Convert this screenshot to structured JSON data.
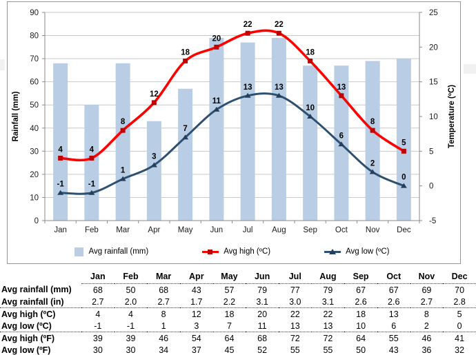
{
  "chart_data": {
    "type": "combo",
    "categories": [
      "Jan",
      "Feb",
      "Mar",
      "Apr",
      "May",
      "Jun",
      "Jul",
      "Aug",
      "Sep",
      "Oct",
      "Nov",
      "Dec"
    ],
    "series": [
      {
        "name": "Avg rainfall (mm)",
        "type": "bar",
        "axis": "left",
        "color": "#B9CDE4",
        "values": [
          68,
          50,
          68,
          43,
          57,
          79,
          77,
          79,
          67,
          67,
          69,
          70
        ]
      },
      {
        "name": "Avg high (ºC)",
        "type": "line",
        "axis": "right",
        "color": "#FF0000",
        "marker": "square",
        "marker_color": "#C00000",
        "values": [
          4,
          4,
          8,
          12,
          18,
          20,
          22,
          22,
          18,
          13,
          8,
          5
        ]
      },
      {
        "name": "Avg low (ºC)",
        "type": "line",
        "axis": "right",
        "color": "#2E5070",
        "marker": "triangle",
        "marker_color": "#223F5F",
        "values": [
          -1,
          -1,
          1,
          3,
          7,
          11,
          13,
          13,
          10,
          6,
          2,
          0
        ]
      }
    ],
    "left_axis": {
      "title": "Rainfall (mm)",
      "min": 0,
      "max": 25,
      "ticks": [
        0,
        10,
        20,
        30,
        40,
        50,
        60,
        70,
        80,
        90
      ]
    },
    "right_axis": {
      "title": "Temperature (ºC)",
      "min": -5,
      "max": 25,
      "ticks": [
        -5,
        0,
        5,
        10,
        15,
        20,
        25
      ]
    },
    "grid": true,
    "legend_position": "bottom",
    "colors": {
      "gridline": "#C9C9C9",
      "axis": "#8A8A8A",
      "label": "#000000"
    }
  },
  "table": {
    "columns": [
      "Jan",
      "Feb",
      "Mar",
      "Apr",
      "May",
      "Jun",
      "Jul",
      "Aug",
      "Sep",
      "Oct",
      "Nov",
      "Dec"
    ],
    "rows": [
      {
        "label": "Avg rainfall (mm)",
        "values": [
          "68",
          "50",
          "68",
          "43",
          "57",
          "79",
          "77",
          "79",
          "67",
          "67",
          "69",
          "70"
        ]
      },
      {
        "label": "Avg rainfall (in)",
        "values": [
          "2.7",
          "2.0",
          "2.7",
          "1.7",
          "2.2",
          "3.1",
          "3.0",
          "3.1",
          "2.6",
          "2.6",
          "2.7",
          "2.8"
        ]
      },
      {
        "label": "Avg high (ºC)",
        "values": [
          "4",
          "4",
          "8",
          "12",
          "18",
          "20",
          "22",
          "22",
          "18",
          "13",
          "8",
          "5"
        ]
      },
      {
        "label": "Avg low (ºC)",
        "values": [
          "-1",
          "-1",
          "1",
          "3",
          "7",
          "11",
          "13",
          "13",
          "10",
          "6",
          "2",
          "0"
        ]
      },
      {
        "label": "Avg high (ºF)",
        "values": [
          "39",
          "39",
          "46",
          "54",
          "64",
          "68",
          "72",
          "72",
          "64",
          "55",
          "46",
          "41"
        ]
      },
      {
        "label": "Avg low (ºF)",
        "values": [
          "30",
          "30",
          "34",
          "37",
          "45",
          "52",
          "55",
          "55",
          "50",
          "43",
          "36",
          "32"
        ]
      }
    ],
    "group_separators_after": [
      1,
      3
    ]
  }
}
